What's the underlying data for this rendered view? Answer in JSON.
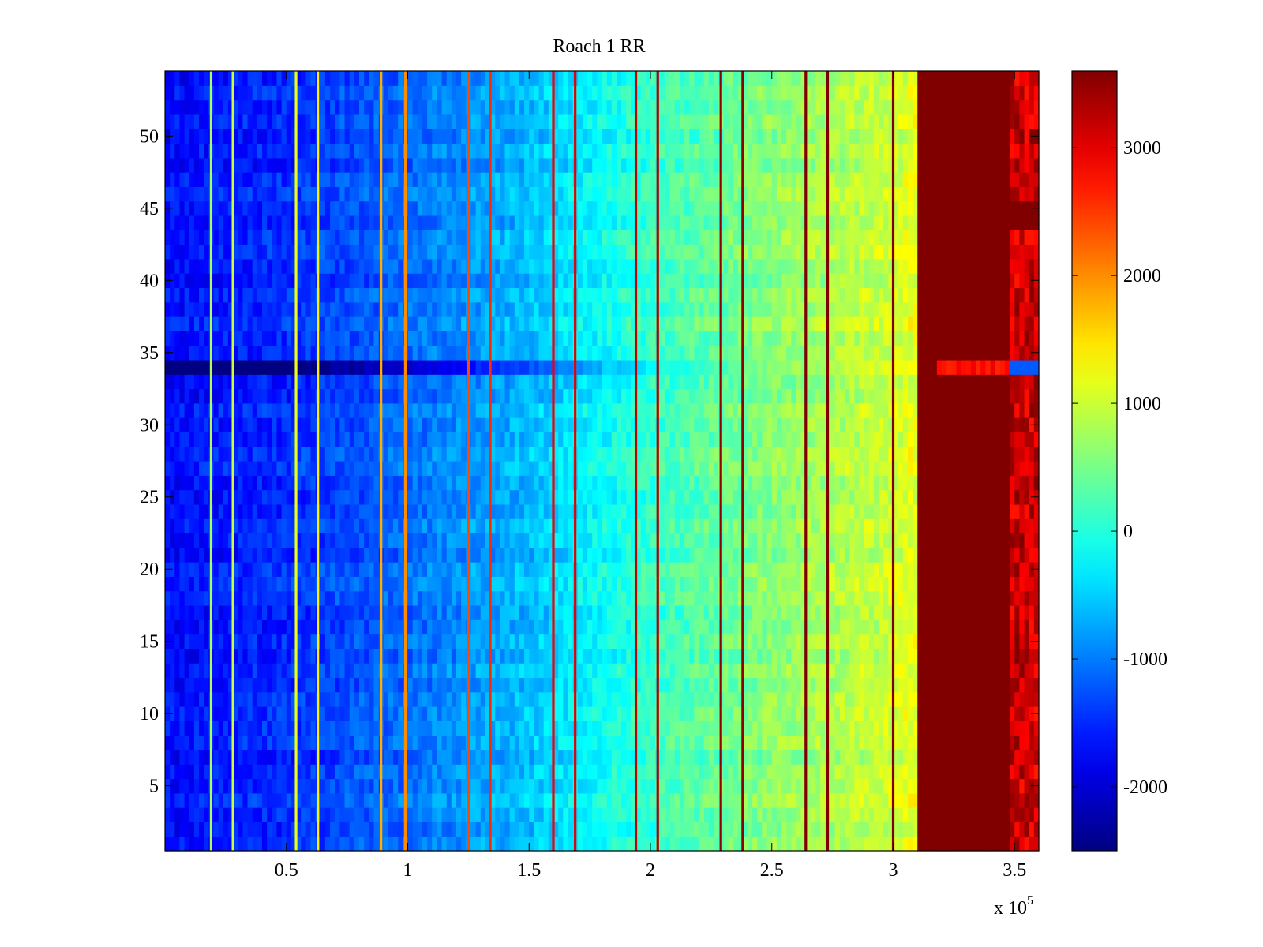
{
  "chart_data": {
    "type": "heatmap",
    "title": "Roach 1 RR",
    "xlabel": "",
    "ylabel": "",
    "x_exponent_label": "x 10",
    "x_exponent": "5",
    "xlim": [
      0,
      360000
    ],
    "ylim": [
      0.5,
      54.5
    ],
    "rows": 54,
    "x_ticks": [
      50000,
      100000,
      150000,
      200000,
      250000,
      300000,
      350000
    ],
    "x_tick_labels": [
      "0.5",
      "1",
      "1.5",
      "2",
      "2.5",
      "3",
      "3.5"
    ],
    "y_ticks": [
      5,
      10,
      15,
      20,
      25,
      30,
      35,
      40,
      45,
      50
    ],
    "y_tick_labels": [
      "5",
      "10",
      "15",
      "20",
      "25",
      "30",
      "35",
      "40",
      "45",
      "50"
    ],
    "colormap": "jet",
    "clim": [
      -2500,
      3600
    ],
    "colorbar_ticks": [
      -2000,
      -1000,
      0,
      1000,
      2000,
      3000
    ],
    "colorbar_tick_labels": [
      "-2000",
      "-1000",
      "0",
      "1000",
      "2000",
      "3000"
    ],
    "value_profile": {
      "x": [
        0,
        50000,
        100000,
        150000,
        200000,
        250000,
        300000,
        310000
      ],
      "value": [
        -1700,
        -1500,
        -1100,
        -600,
        100,
        600,
        1000,
        1200
      ]
    },
    "saturated_region": {
      "x_start": 310000,
      "x_end": 360000,
      "value": 3600
    },
    "stripes": [
      {
        "x": 19000,
        "value": 800
      },
      {
        "x": 28000,
        "value": 1000
      },
      {
        "x": 54000,
        "value": 1200
      },
      {
        "x": 63000,
        "value": 1400
      },
      {
        "x": 89000,
        "value": 1800
      },
      {
        "x": 99000,
        "value": 2000
      },
      {
        "x": 125000,
        "value": 2400
      },
      {
        "x": 134000,
        "value": 2600
      },
      {
        "x": 160000,
        "value": 2900
      },
      {
        "x": 169000,
        "value": 3000
      },
      {
        "x": 194000,
        "value": 3200
      },
      {
        "x": 203000,
        "value": 3300
      },
      {
        "x": 229000,
        "value": 3500
      },
      {
        "x": 238000,
        "value": 3500
      },
      {
        "x": 264000,
        "value": 3600
      },
      {
        "x": 273000,
        "value": 3600
      },
      {
        "x": 300000,
        "value": 3600
      }
    ],
    "anomalous_row": {
      "y": 34,
      "offset": -600
    },
    "right_band": {
      "x_start": 349000,
      "x_end": 360000
    }
  }
}
